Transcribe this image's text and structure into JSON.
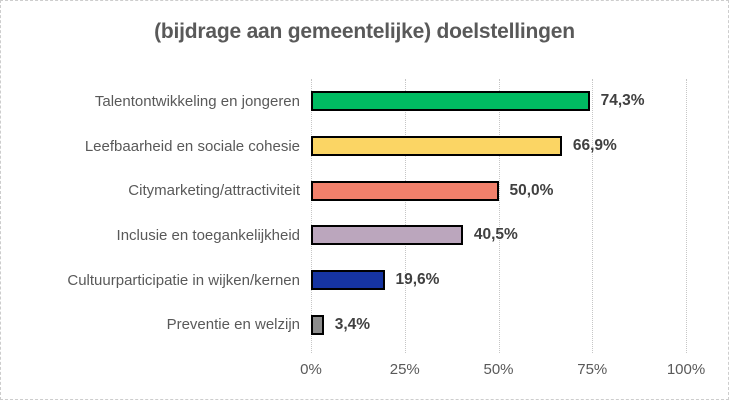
{
  "chart_data": {
    "type": "bar",
    "orientation": "horizontal",
    "title": "(bijdrage aan gemeentelijke) doelstellingen",
    "categories": [
      "Talentontwikkeling en jongeren",
      "Leefbaarheid en sociale cohesie",
      "Citymarketing/attractiviteit",
      "Inclusie en toegankelijkheid",
      "Cultuurparticipatie in wijken/kernen",
      "Preventie en welzijn"
    ],
    "values": [
      74.3,
      66.9,
      50.0,
      40.5,
      19.6,
      3.4
    ],
    "value_labels": [
      "74,3%",
      "66,9%",
      "50,0%",
      "40,5%",
      "19,6%",
      "3,4%"
    ],
    "bar_colors": [
      "#00bb62",
      "#fbd564",
      "#f1806b",
      "#bba6bd",
      "#1634a1",
      "#8c8c8c"
    ],
    "bar_border_color": "#000000",
    "xlabel": "",
    "ylabel": "",
    "xlim": [
      0,
      100
    ],
    "tick_labels": [
      "0%",
      "25%",
      "50%",
      "75%",
      "100%"
    ],
    "tick_positions": [
      0,
      25,
      50,
      75,
      100
    ],
    "grid": "vertical-dotted",
    "legend": "none",
    "title_color": "#595959",
    "label_color": "#595959",
    "data_label_color": "#404040"
  }
}
